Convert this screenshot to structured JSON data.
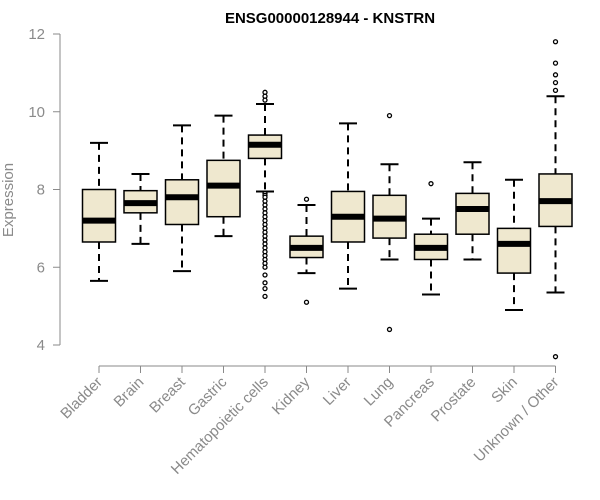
{
  "chart_data": {
    "type": "box",
    "title": "ENSG00000128944 - KNSTRN",
    "ylabel": "Expression",
    "xlabel": "",
    "ylim": [
      4,
      12
    ],
    "yticks": [
      4,
      6,
      8,
      10,
      12
    ],
    "box_color": "#efe8cf",
    "categories": [
      "Bladder",
      "Brain",
      "Breast",
      "Gastric",
      "Hematopoietic cells",
      "Kidney",
      "Liver",
      "Lung",
      "Pancreas",
      "Prostate",
      "Skin",
      "Unknown / Other"
    ],
    "boxes": [
      {
        "min": 5.65,
        "q1": 6.65,
        "median": 7.2,
        "q3": 8.0,
        "max": 9.2,
        "outliers": []
      },
      {
        "min": 6.6,
        "q1": 7.4,
        "median": 7.65,
        "q3": 7.97,
        "max": 8.4,
        "outliers": []
      },
      {
        "min": 5.9,
        "q1": 7.1,
        "median": 7.8,
        "q3": 8.25,
        "max": 9.65,
        "outliers": []
      },
      {
        "min": 6.8,
        "q1": 7.3,
        "median": 8.1,
        "q3": 8.75,
        "max": 9.9,
        "outliers": []
      },
      {
        "min": 7.95,
        "q1": 8.8,
        "median": 9.15,
        "q3": 9.4,
        "max": 10.2,
        "outliers": [
          10.5,
          10.4,
          10.3,
          7.9,
          7.85,
          7.8,
          7.7,
          7.6,
          7.5,
          7.4,
          7.3,
          7.2,
          7.1,
          7.0,
          6.9,
          6.8,
          6.7,
          6.6,
          6.5,
          6.4,
          6.3,
          6.2,
          6.1,
          6.0,
          5.8,
          5.6,
          5.45,
          5.25
        ]
      },
      {
        "min": 5.85,
        "q1": 6.25,
        "median": 6.5,
        "q3": 6.8,
        "max": 7.6,
        "outliers": [
          7.75,
          5.1
        ]
      },
      {
        "min": 5.45,
        "q1": 6.65,
        "median": 7.3,
        "q3": 7.95,
        "max": 9.7,
        "outliers": []
      },
      {
        "min": 6.2,
        "q1": 6.75,
        "median": 7.25,
        "q3": 7.85,
        "max": 8.65,
        "outliers": [
          9.9,
          4.4
        ]
      },
      {
        "min": 5.3,
        "q1": 6.2,
        "median": 6.5,
        "q3": 6.85,
        "max": 7.25,
        "outliers": [
          8.15
        ]
      },
      {
        "min": 6.2,
        "q1": 6.85,
        "median": 7.5,
        "q3": 7.9,
        "max": 8.7,
        "outliers": []
      },
      {
        "min": 4.9,
        "q1": 5.85,
        "median": 6.6,
        "q3": 7.0,
        "max": 8.25,
        "outliers": []
      },
      {
        "min": 5.35,
        "q1": 7.05,
        "median": 7.7,
        "q3": 8.4,
        "max": 10.4,
        "outliers": [
          11.8,
          11.25,
          10.95,
          10.75,
          10.55,
          3.7
        ]
      }
    ]
  }
}
